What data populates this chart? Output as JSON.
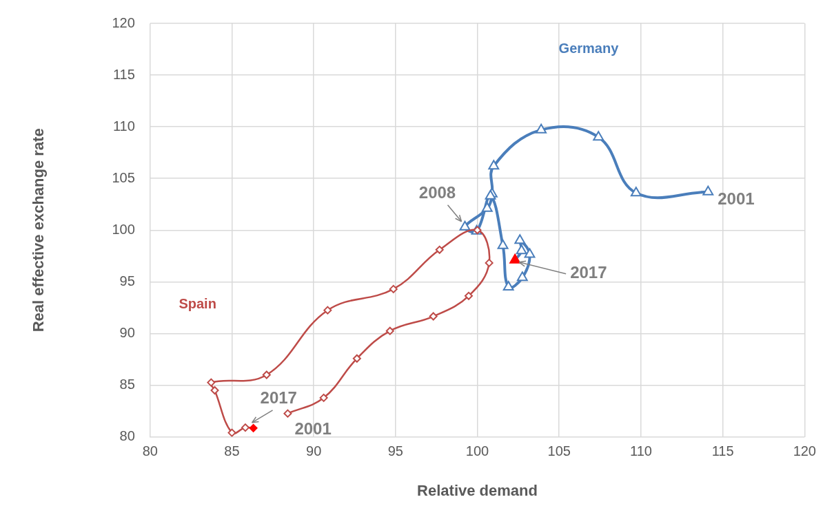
{
  "chart_data": {
    "type": "line",
    "xlabel": "Relative demand",
    "ylabel": "Real effective exchange rate",
    "xlim": [
      80,
      120
    ],
    "xticks": [
      80,
      85,
      90,
      95,
      100,
      105,
      110,
      115,
      120
    ],
    "ylim": [
      80,
      120
    ],
    "yticks": [
      80,
      85,
      90,
      95,
      100,
      105,
      110,
      115,
      120
    ],
    "grid": true,
    "legend": false,
    "series": [
      {
        "name": "Germany",
        "color": "#4a7ebb",
        "marker": "triangle",
        "x": [
          114.1,
          109.7,
          107.4,
          103.9,
          101.0,
          100.9,
          100.6,
          99.24,
          99.96,
          100.8,
          101.56,
          101.9,
          102.75,
          103.2,
          102.6,
          102.7,
          102.3
        ],
        "values": [
          103.7,
          103.6,
          109.0,
          109.7,
          106.2,
          103.5,
          102.1,
          100.3,
          99.9,
          103.3,
          98.5,
          94.5,
          95.4,
          97.65,
          99.0,
          98.0,
          97.1
        ],
        "colors": [
          "#ffffff",
          "#ffffff",
          "#ffffff",
          "#ffffff",
          "#ffffff",
          "#ffffff",
          "#ffffff",
          "#ffffff",
          "#ffffff",
          "#ffffff",
          "#ffffff",
          "#ffffff",
          "#ffffff",
          "#ffffff",
          "#ffffff",
          "#ffffff",
          "#ff0000"
        ]
      },
      {
        "name": "Spain",
        "color": "#be4b48",
        "marker": "diamond",
        "x": [
          88.41,
          90.61,
          92.64,
          94.66,
          97.31,
          99.47,
          100.72,
          100.0,
          97.69,
          94.87,
          90.85,
          87.12,
          83.73,
          83.95,
          85.0,
          85.82,
          86.31
        ],
        "values": [
          82.26,
          83.78,
          87.58,
          90.25,
          91.66,
          93.64,
          96.83,
          100.0,
          98.1,
          94.3,
          92.25,
          86.0,
          85.26,
          84.5,
          80.4,
          80.9,
          80.85
        ],
        "colors": [
          "#ffffff",
          "#ffffff",
          "#ffffff",
          "#ffffff",
          "#ffffff",
          "#ffffff",
          "#ffffff",
          "#ffffff",
          "#ffffff",
          "#ffffff",
          "#ffffff",
          "#ffffff",
          "#ffffff",
          "#ffffff",
          "#ffffff",
          "#ffffff",
          "#ff0000"
        ]
      }
    ],
    "annotations": [
      {
        "text": "2001",
        "x": 114.1,
        "y": 103.7
      },
      {
        "text": "2008",
        "x": 99.24,
        "y": 100.3
      },
      {
        "text": "2017",
        "x": 102.3,
        "y": 97.1
      },
      {
        "text": "2017",
        "x": 86.31,
        "y": 80.85
      },
      {
        "text": "2001",
        "x": 88.41,
        "y": 82.26
      }
    ]
  }
}
